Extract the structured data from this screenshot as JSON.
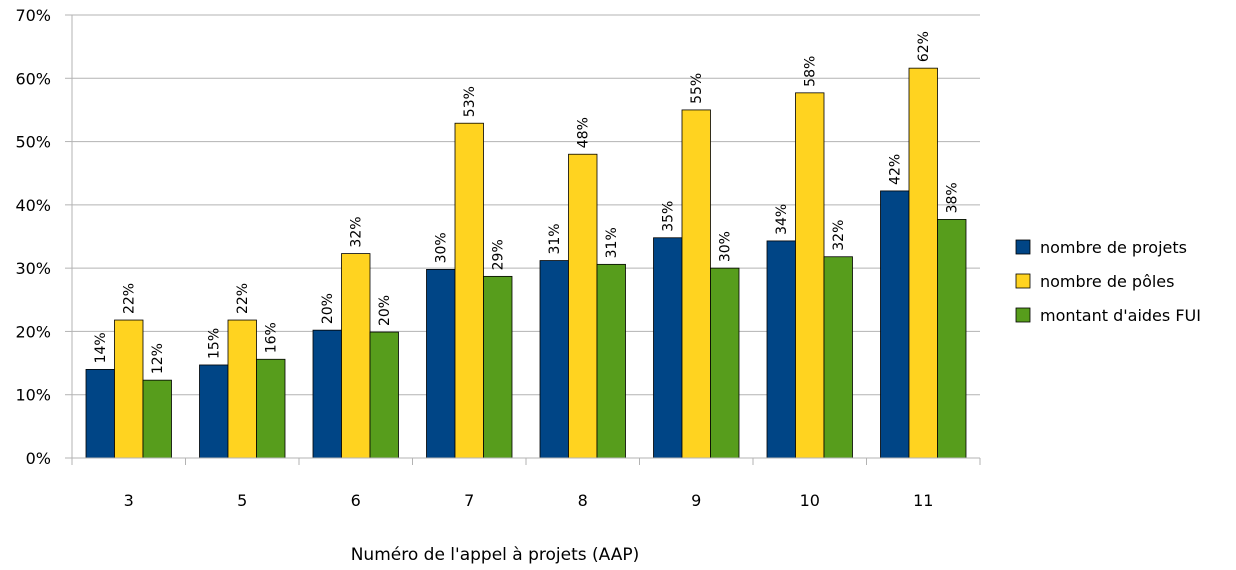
{
  "chart_data": {
    "type": "bar",
    "title": "",
    "xlabel": "Numéro de l'appel à projets (AAP)",
    "ylabel": "",
    "ylim": [
      0,
      70
    ],
    "y_ticks": [
      "0%",
      "10%",
      "20%",
      "30%",
      "40%",
      "50%",
      "60%",
      "70%"
    ],
    "y_tick_values": [
      0,
      10,
      20,
      30,
      40,
      50,
      60,
      70
    ],
    "grid": true,
    "legend_position": "right",
    "categories": [
      "3",
      "5",
      "6",
      "7",
      "8",
      "9",
      "10",
      "11"
    ],
    "series": [
      {
        "name": "nombre de projets",
        "color": "#004586",
        "values": [
          14,
          14.7,
          20.2,
          29.8,
          31.2,
          34.8,
          34.3,
          42.2
        ],
        "labels": [
          "14%",
          "15%",
          "20%",
          "30%",
          "31%",
          "35%",
          "34%",
          "42%"
        ]
      },
      {
        "name": "nombre de pôles",
        "color": "#ffd320",
        "values": [
          21.8,
          21.8,
          32.3,
          52.9,
          48,
          55,
          57.7,
          61.6
        ],
        "labels": [
          "22%",
          "22%",
          "32%",
          "53%",
          "48%",
          "55%",
          "58%",
          "62%"
        ]
      },
      {
        "name": "montant d'aides FUI",
        "color": "#579d1c",
        "values": [
          12.3,
          15.6,
          19.9,
          28.7,
          30.6,
          30,
          31.8,
          37.7
        ],
        "labels": [
          "12%",
          "16%",
          "20%",
          "29%",
          "31%",
          "30%",
          "32%",
          "38%"
        ]
      }
    ]
  }
}
